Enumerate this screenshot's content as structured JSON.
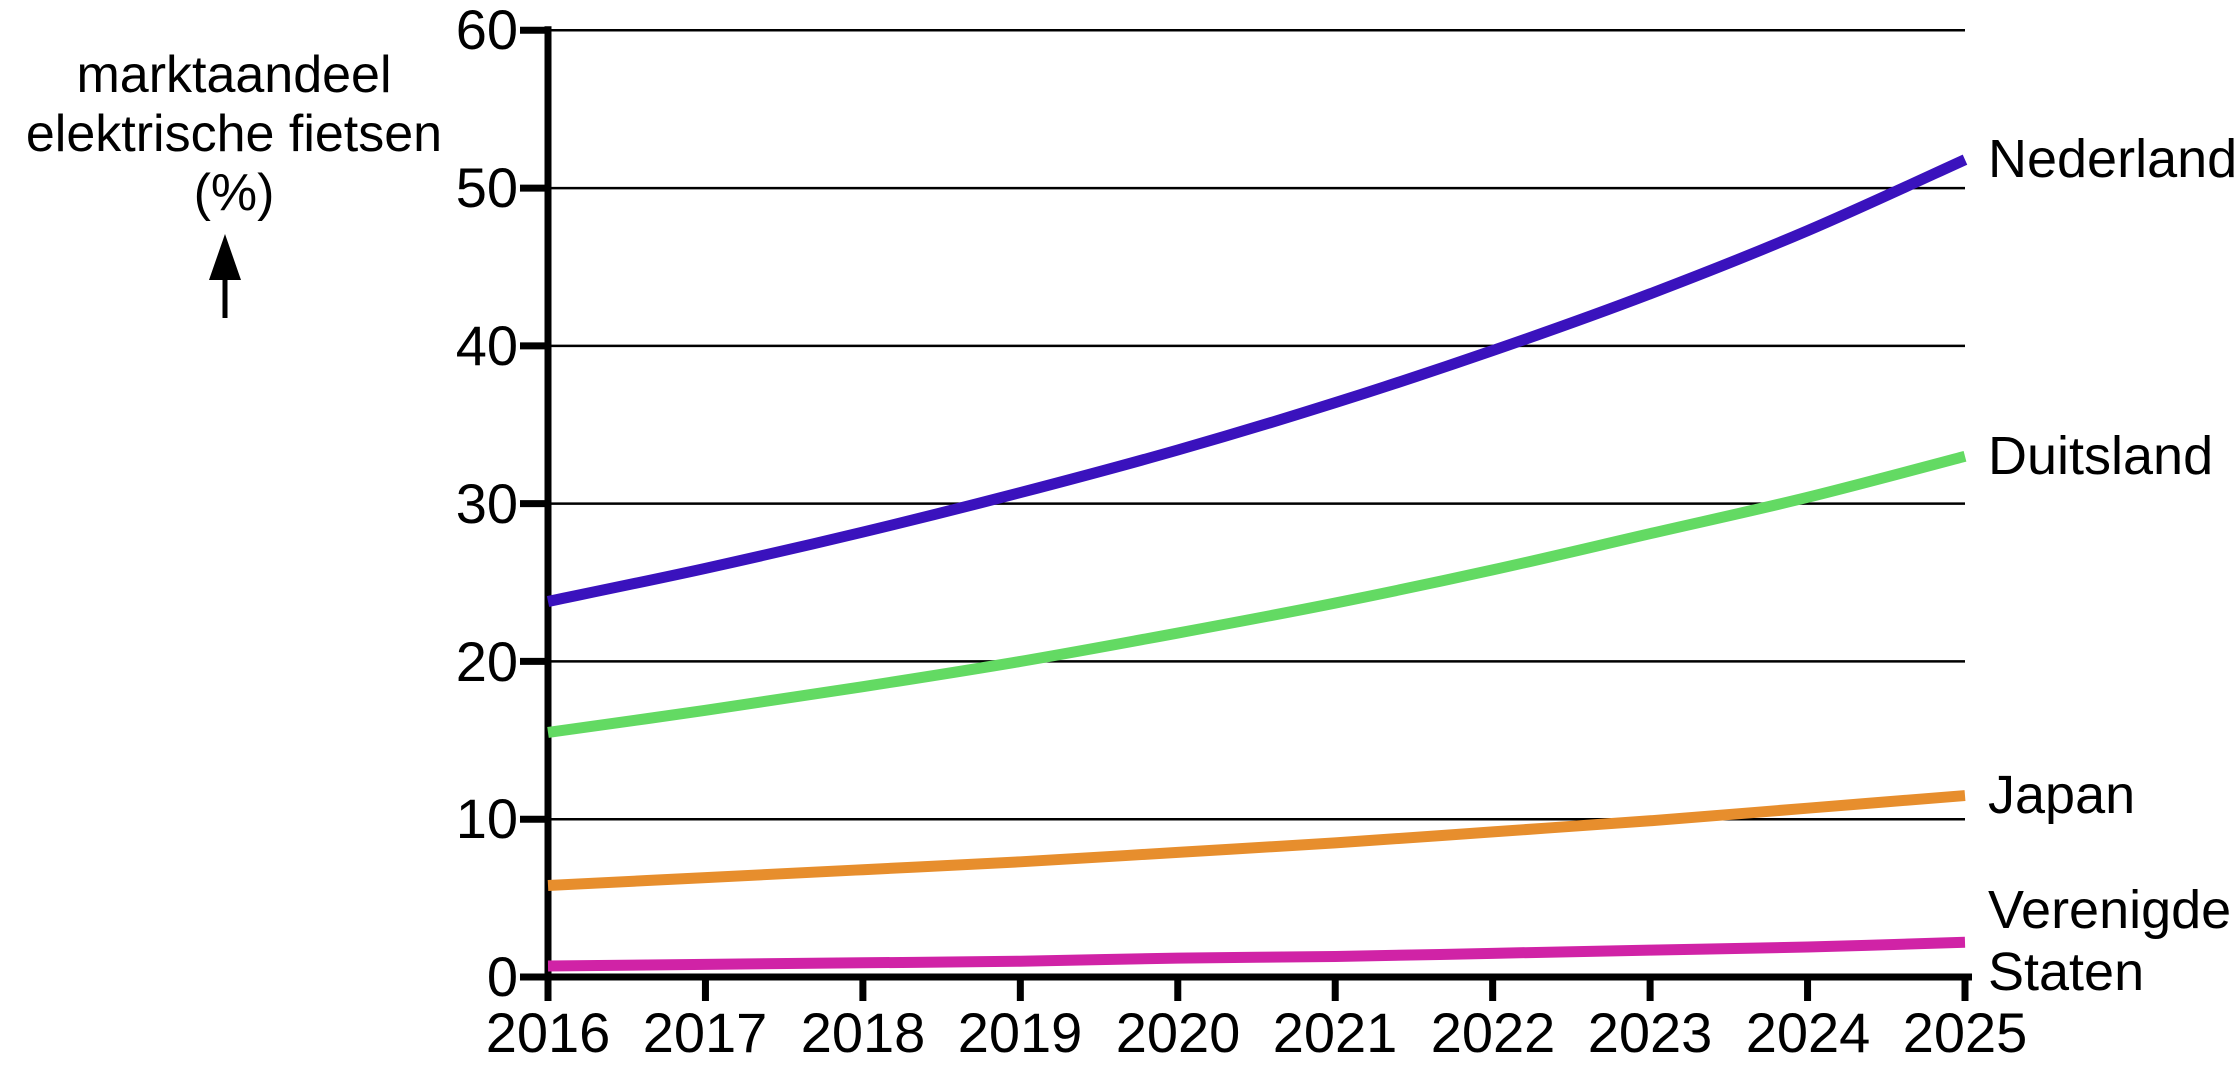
{
  "title": {
    "lines": [
      "marktaandeel",
      "elektrische fietsen",
      "(%)"
    ]
  },
  "axis": {
    "y_ticks": [
      60,
      50,
      40,
      30,
      20,
      10,
      0
    ],
    "x_ticks": [
      2016,
      2017,
      2018,
      2019,
      2020,
      2021,
      2022,
      2023,
      2024,
      2025
    ],
    "axis_color": "#000000",
    "grid_color": "#000000"
  },
  "chart_data": {
    "type": "line",
    "title": "",
    "ylabel": "marktaandeel elektrische fietsen (%)",
    "xlabel": "",
    "ylim": [
      0,
      60
    ],
    "y_tick_interval": 10,
    "grid": true,
    "legend_position": "labels at right line ends",
    "x": [
      2016,
      2017,
      2018,
      2019,
      2020,
      2021,
      2022,
      2023,
      2024,
      2025
    ],
    "series": [
      {
        "name": "Nederland",
        "color": "#3a12bd",
        "values": [
          23.8,
          25.9,
          28.2,
          30.7,
          33.4,
          36.4,
          39.7,
          43.3,
          47.3,
          51.8
        ]
      },
      {
        "name": "Duitsland",
        "color": "#63da63",
        "values": [
          15.5,
          16.9,
          18.4,
          20.0,
          21.8,
          23.7,
          25.8,
          28.1,
          30.4,
          33.0
        ]
      },
      {
        "name": "Japan",
        "color": "#e78e2d",
        "values": [
          5.8,
          6.3,
          6.8,
          7.3,
          7.9,
          8.5,
          9.2,
          9.9,
          10.7,
          11.5
        ]
      },
      {
        "name": "Verenigde Staten",
        "color": "#d023a6",
        "values": [
          0.7,
          0.8,
          0.9,
          1.0,
          1.2,
          1.3,
          1.5,
          1.7,
          1.9,
          2.2
        ]
      }
    ]
  }
}
